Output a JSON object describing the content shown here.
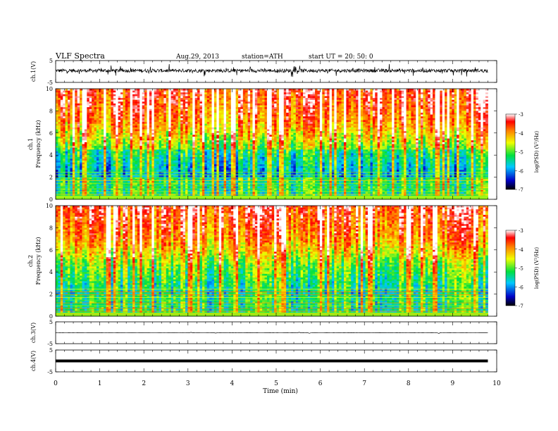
{
  "header": {
    "title": "VLF  Spectra",
    "date": "Aug.29, 2013",
    "station": "station=ATH",
    "start": "start  UT  =   20: 50: 0"
  },
  "chart_data": [
    {
      "type": "line",
      "name": "ch1-waveform",
      "ylabel": "ch.1(V)",
      "ylim": [
        -5,
        5
      ],
      "yticks": [
        "5",
        "-5"
      ],
      "amplitude_v": 1.0
    },
    {
      "type": "heatmap",
      "name": "ch1-spectrogram",
      "ylabel": [
        "ch.1",
        "Frequency  (kHz)"
      ],
      "ylim": [
        0,
        10
      ],
      "yticks": [
        "0",
        "2",
        "4",
        "6",
        "8",
        "10"
      ],
      "colorbar": {
        "label": "log(PSD) (V²/Hz)",
        "range": [
          -7,
          -3
        ],
        "ticks": [
          "-3",
          "-4",
          "-5",
          "-6",
          "-7"
        ]
      }
    },
    {
      "type": "heatmap",
      "name": "ch2-spectrogram",
      "ylabel": [
        "ch.2",
        "Frequency  (kHz)"
      ],
      "ylim": [
        0,
        10
      ],
      "yticks": [
        "0",
        "2",
        "4",
        "6",
        "8",
        "10"
      ],
      "colorbar": {
        "label": "log(PSD) (V²/Hz)",
        "range": [
          -7,
          -3
        ],
        "ticks": [
          "-3",
          "-4",
          "-5",
          "-6",
          "-7"
        ]
      }
    },
    {
      "type": "line",
      "name": "ch3-waveform",
      "ylabel": "ch.3(V)",
      "ylim": [
        -5,
        5
      ],
      "yticks": [
        "5",
        "-5"
      ],
      "level_v": 0
    },
    {
      "type": "line",
      "name": "ch4-waveform",
      "ylabel": "ch.4(V)",
      "ylim": [
        -5,
        5
      ],
      "yticks": [
        "5",
        "-5"
      ],
      "level_v": 0
    }
  ],
  "xaxis": {
    "label": "Time  (min)",
    "range": [
      0,
      10
    ],
    "ticks": [
      "0",
      "1",
      "2",
      "3",
      "4",
      "5",
      "6",
      "7",
      "8",
      "9",
      "10"
    ],
    "data_end_min": 9.8
  }
}
